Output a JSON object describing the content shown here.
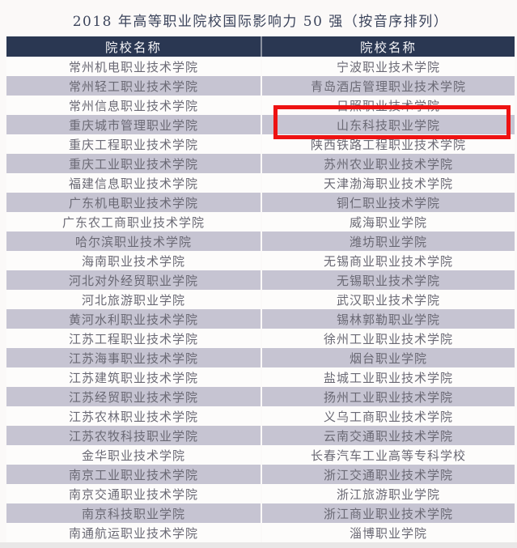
{
  "page": {
    "title": "2018 年高等职业院校国际影响力 50 强（按音序排列）"
  },
  "table": {
    "column_headers": [
      "院校名称",
      "院校名称"
    ],
    "rows": [
      [
        "常州机电职业技术学院",
        "宁波职业技术学院"
      ],
      [
        "常州轻工职业技术学院",
        "青岛酒店管理职业技术学院"
      ],
      [
        "常州信息职业技术学院",
        "日照职业技术学院"
      ],
      [
        "重庆城市管理职业学院",
        "山东科技职业学院"
      ],
      [
        "重庆工程职业技术学院",
        "陕西铁路工程职业技术学院"
      ],
      [
        "重庆工业职业技术学院",
        "苏州农业职业技术学院"
      ],
      [
        "福建信息职业技术学院",
        "天津渤海职业技术学院"
      ],
      [
        "广东机电职业技术学院",
        "铜仁职业技术学院"
      ],
      [
        "广东农工商职业技术学院",
        "威海职业学院"
      ],
      [
        "哈尔滨职业技术学院",
        "潍坊职业学院"
      ],
      [
        "海南职业技术学院",
        "无锡商业职业技术学院"
      ],
      [
        "河北对外经贸职业学院",
        "无锡职业技术学院"
      ],
      [
        "河北旅游职业学院",
        "武汉职业技术学院"
      ],
      [
        "黄河水利职业技术学院",
        "锡林郭勒职业学院"
      ],
      [
        "江苏工程职业技术学院",
        "徐州工业职业技术学院"
      ],
      [
        "江苏海事职业技术学院",
        "烟台职业学院"
      ],
      [
        "江苏建筑职业技术学院",
        "盐城工业职业技术学院"
      ],
      [
        "江苏经贸职业技术学院",
        "扬州工业职业技术学院"
      ],
      [
        "江苏农林职业技术学院",
        "义乌工商职业技术学院"
      ],
      [
        "江苏农牧科技职业学院",
        "云南交通职业技术学院"
      ],
      [
        "金华职业技术学院",
        "长春汽车工业高等专科学校"
      ],
      [
        "南京工业职业技术学院",
        "浙江交通职业技术学院"
      ],
      [
        "南京交通职业技术学院",
        "浙江旅游职业学院"
      ],
      [
        "南京科技职业学院",
        "浙江商业职业技术学院"
      ],
      [
        "南通航运职业技术学院",
        "淄博职业学院"
      ]
    ]
  },
  "highlight": {
    "row": 2,
    "column": 2,
    "college": "青岛酒店管理职业技术学院",
    "border_color": "#ee1212"
  },
  "colors": {
    "page_bg": "#fbf9f8",
    "header_bg": "#2a3752",
    "header_text": "#f3f3f6",
    "row_bg": "#fdfcfb",
    "row_alt_bg": "#c6c4d2",
    "cell_text": "#6a6974",
    "title_text": "#3b445b",
    "footer_strip": "#e9e7e7",
    "highlight_border": "#ee1212"
  }
}
